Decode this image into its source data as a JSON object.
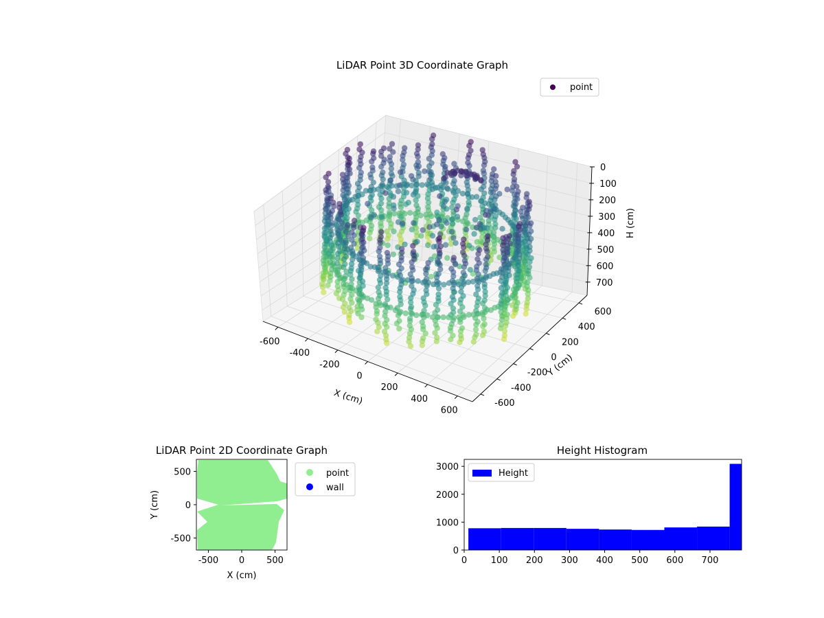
{
  "chart_data": [
    {
      "type": "scatter",
      "projection": "3d",
      "title": "LiDAR Point 3D Coordinate Graph",
      "xlabel": "X (cm)",
      "ylabel": "Y (cm)",
      "zlabel": "H (cm)",
      "xlim": [
        -700,
        700
      ],
      "ylim": [
        -700,
        700
      ],
      "zlim": [
        0,
        780
      ],
      "z_inverted": true,
      "xticks": [
        -600,
        -400,
        -200,
        0,
        200,
        400,
        600
      ],
      "yticks": [
        -600,
        -400,
        -200,
        0,
        200,
        400,
        600
      ],
      "zticks": [
        0,
        100,
        200,
        300,
        400,
        500,
        600,
        700
      ],
      "grid": true,
      "colormap": "viridis",
      "legend": {
        "placement": "top-right",
        "entries": [
          {
            "label": "point",
            "color": "#440154"
          }
        ]
      }
    },
    {
      "type": "scatter",
      "title": "LiDAR Point 2D Coordinate Graph",
      "xlabel": "X (cm)",
      "ylabel": "Y (cm)",
      "xlim": [
        -680,
        680
      ],
      "ylim": [
        -680,
        680
      ],
      "xticks": [
        -500,
        0,
        500
      ],
      "yticks": [
        -500,
        0,
        500
      ],
      "series": [
        {
          "name": "point",
          "color": "#90ee90"
        },
        {
          "name": "wall",
          "color": "#0000ff"
        }
      ],
      "legend": {
        "placement": "outside-right"
      }
    },
    {
      "type": "bar",
      "title": "Height Histogram",
      "xlim": [
        0,
        790
      ],
      "ylim": [
        0,
        3250
      ],
      "xticks": [
        0,
        100,
        200,
        300,
        400,
        500,
        600,
        700
      ],
      "yticks": [
        0,
        1000,
        2000,
        3000
      ],
      "bin_edges": [
        12,
        105,
        198,
        291,
        384,
        477,
        570,
        663,
        756,
        790
      ],
      "values": [
        780,
        790,
        790,
        760,
        735,
        720,
        810,
        840,
        3090
      ],
      "series": [
        {
          "name": "Height",
          "color": "#0000ff"
        }
      ],
      "legend": {
        "placement": "top-left"
      }
    }
  ]
}
